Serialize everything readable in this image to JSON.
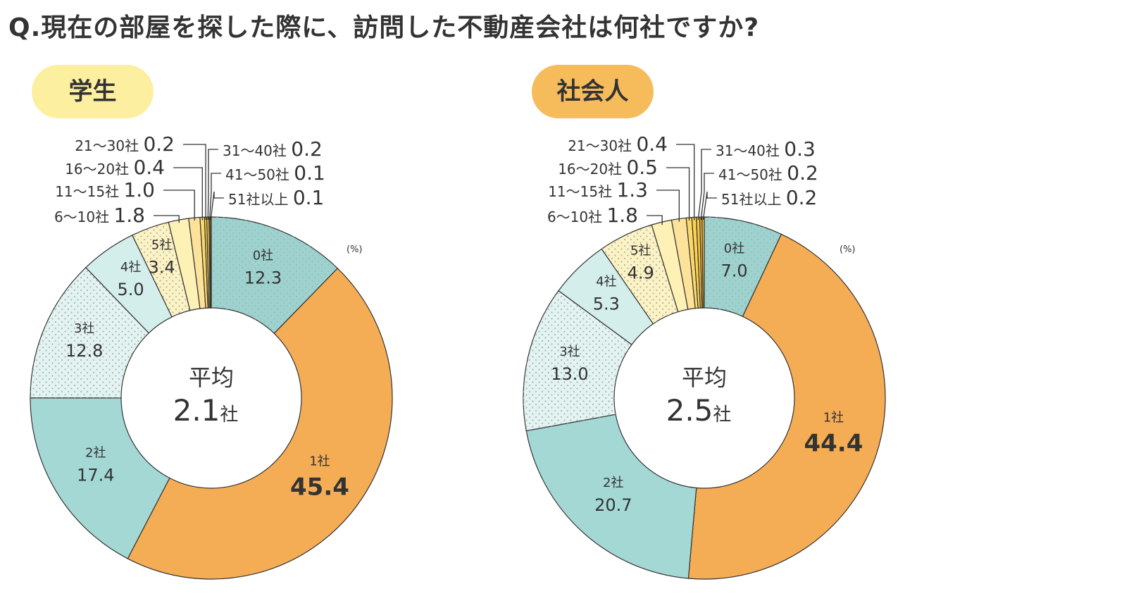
{
  "title": "Q.現在の部屋を探した際に、訪問した不動産会社は何社ですか?",
  "colors": {
    "c0": "#9cd3cf",
    "c1": "#f5ad55",
    "c2": "#a4d8d5",
    "c3": "#e2f3f1",
    "c4": "#d4eeec",
    "c5": "#fdf2c2",
    "c6": "#fdf1b6",
    "c7": "#fde39a",
    "c8": "#fcd86a",
    "c9": "#fbd24e",
    "c10": "#f6c64a",
    "c11": "#f2bd45",
    "pill_student": "#fdefa0",
    "pill_worker": "#f6bc5c",
    "dots": "#a9b6b4"
  },
  "chart_data": [
    {
      "type": "pie",
      "title": "学生",
      "unit": "(%)",
      "center_label": "平均",
      "center_value": "2.1",
      "center_unit": "社",
      "categories": [
        "0社",
        "1社",
        "2社",
        "3社",
        "4社",
        "5社",
        "6~10社",
        "11~15社",
        "16~20社",
        "21~30社",
        "31~40社",
        "41~50社",
        "51社以上"
      ],
      "values": [
        12.3,
        45.4,
        17.4,
        12.8,
        5.0,
        3.4,
        1.8,
        1.0,
        0.4,
        0.2,
        0.2,
        0.1,
        0.1
      ],
      "value_labels": [
        "12.3",
        "45.4",
        "17.4",
        "12.8",
        "5.0",
        "3.4",
        "1.8",
        "1.0",
        "0.4",
        "0.2",
        "0.2",
        "0.1",
        "0.1"
      ],
      "callouts": [
        {
          "index": 6,
          "label": "6〜10社",
          "value": "1.8",
          "side": "left"
        },
        {
          "index": 7,
          "label": "11〜15社",
          "value": "1.0",
          "side": "left"
        },
        {
          "index": 8,
          "label": "16〜20社",
          "value": "0.4",
          "side": "left"
        },
        {
          "index": 9,
          "label": "21〜30社",
          "value": "0.2",
          "side": "left"
        },
        {
          "index": 10,
          "label": "31〜40社",
          "value": "0.2",
          "side": "right"
        },
        {
          "index": 11,
          "label": "41〜50社",
          "value": "0.1",
          "side": "right"
        },
        {
          "index": 12,
          "label": "51社以上",
          "value": "0.1",
          "side": "right"
        }
      ]
    },
    {
      "type": "pie",
      "title": "社会人",
      "unit": "(%)",
      "center_label": "平均",
      "center_value": "2.5",
      "center_unit": "社",
      "categories": [
        "0社",
        "1社",
        "2社",
        "3社",
        "4社",
        "5社",
        "6~10社",
        "11~15社",
        "16~20社",
        "21~30社",
        "31~40社",
        "41~50社",
        "51社以上"
      ],
      "values": [
        7.0,
        44.4,
        20.7,
        13.0,
        5.3,
        4.9,
        1.8,
        1.3,
        0.5,
        0.4,
        0.3,
        0.2,
        0.2
      ],
      "value_labels": [
        "7.0",
        "44.4",
        "20.7",
        "13.0",
        "5.3",
        "4.9",
        "1.8",
        "1.3",
        "0.5",
        "0.4",
        "0.3",
        "0.2",
        "0.2"
      ],
      "callouts": [
        {
          "index": 6,
          "label": "6〜10社",
          "value": "1.8",
          "side": "left"
        },
        {
          "index": 7,
          "label": "11〜15社",
          "value": "1.3",
          "side": "left"
        },
        {
          "index": 8,
          "label": "16〜20社",
          "value": "0.5",
          "side": "left"
        },
        {
          "index": 9,
          "label": "21〜30社",
          "value": "0.4",
          "side": "left"
        },
        {
          "index": 10,
          "label": "31〜40社",
          "value": "0.3",
          "side": "right"
        },
        {
          "index": 11,
          "label": "41〜50社",
          "value": "0.2",
          "side": "right"
        },
        {
          "index": 12,
          "label": "51社以上",
          "value": "0.2",
          "side": "right"
        }
      ]
    }
  ]
}
